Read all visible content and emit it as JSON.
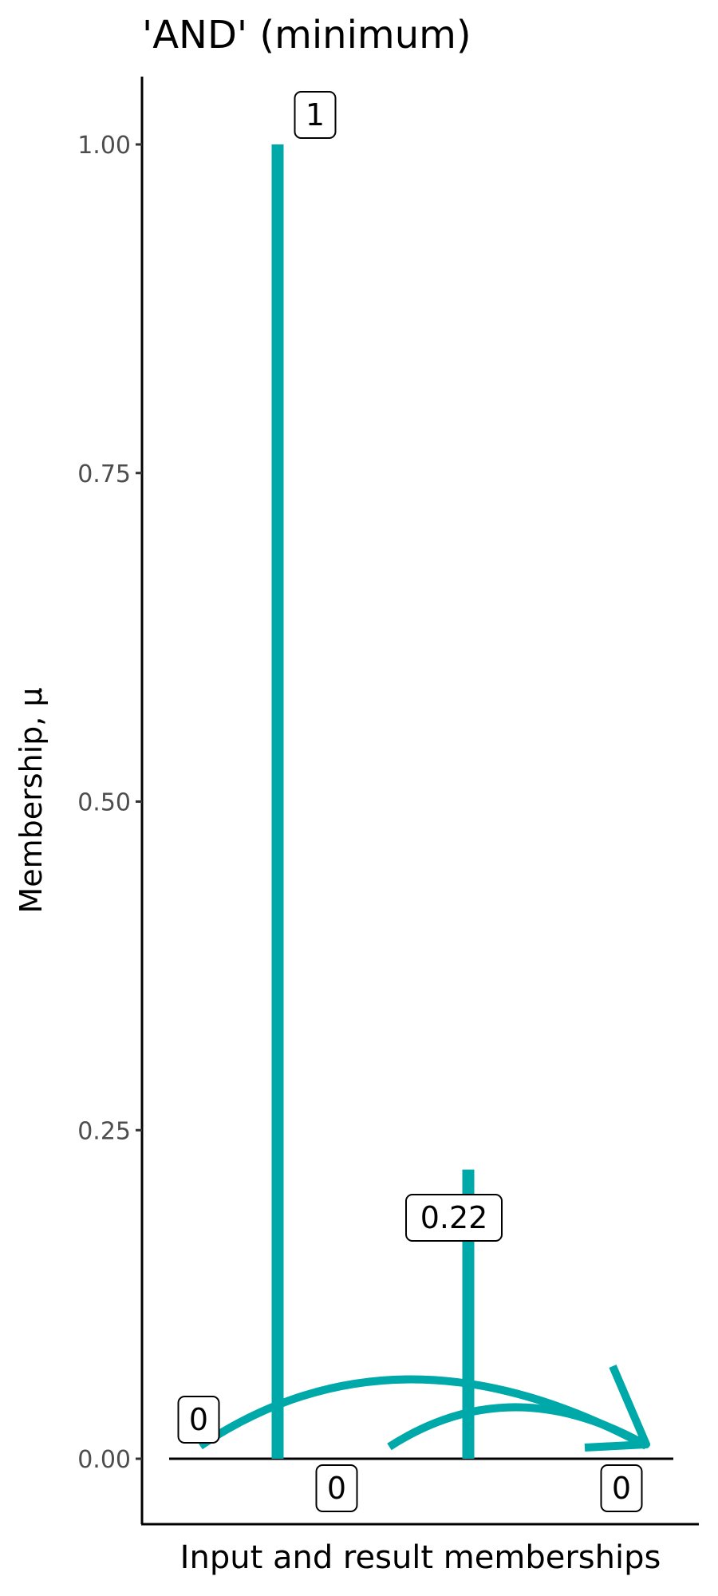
{
  "chart_data": {
    "type": "segment",
    "title": "'AND' (minimum)",
    "xlabel": "Input and result memberships",
    "ylabel": "Membership, μ",
    "ylim": [
      0,
      1
    ],
    "yticks": [
      "0.00",
      "0.25",
      "0.50",
      "0.75",
      "1.00"
    ],
    "ytick_values": [
      0,
      0.25,
      0.5,
      0.75,
      1
    ],
    "grid": false,
    "color": "#00A9A9",
    "bars": [
      {
        "value": 1,
        "label": "1"
      },
      {
        "value": 0.22,
        "label": "0.22"
      }
    ],
    "point_labels": [
      {
        "value": 0,
        "label": "0"
      },
      {
        "value": 0,
        "label": "0"
      },
      {
        "value": 0,
        "label": "0"
      }
    ]
  }
}
